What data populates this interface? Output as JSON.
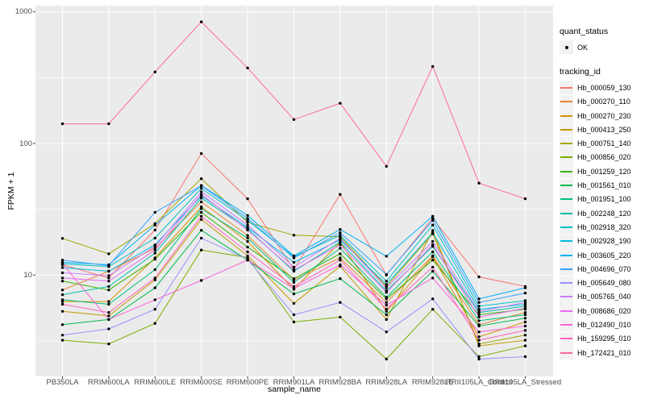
{
  "figure": {
    "background": "#FFFFFF",
    "panel_fill": "#EBEBEB",
    "grid_color": "#FFFFFF",
    "tick_color": "#333333",
    "tick_label_color": "#4D4D4D",
    "marker_color": "#000000"
  },
  "legend": {
    "quant_status_title": "quant_status",
    "quant_status_items": [
      "OK"
    ],
    "tracking_id_title": "tracking_id"
  },
  "chart_data": {
    "type": "line",
    "title": "",
    "xlabel": "sample_name",
    "ylabel": "FPKM + 1",
    "y_scale": "log10",
    "ylim": [
      1.7,
      1115
    ],
    "y_ticks": [
      10,
      100,
      1000
    ],
    "y_tick_labels": [
      "10",
      "100",
      "1000"
    ],
    "y_minor_gridlines": [
      3.162,
      31.623,
      316.228
    ],
    "grid": true,
    "legend_position": "right",
    "marker": "point",
    "categories": [
      "PB350LA",
      "RRIM600LA",
      "RRIM600LE",
      "RRIM600SE",
      "RRIM600PE",
      "RRIM901LA",
      "RRIM928BA",
      "RRIM928LA",
      "RRIM928LE",
      "RRII105LA_Control",
      "RRII105LA_Stressed"
    ],
    "series": [
      {
        "name": "Hb_000059_130",
        "color": "#F8766D",
        "values": [
          12,
          9.5,
          22,
          84,
          38,
          11,
          41,
          10,
          27,
          9.7,
          8.2
        ]
      },
      {
        "name": "Hb_000270_110",
        "color": "#EA8331",
        "values": [
          7.7,
          10.7,
          16,
          36,
          20,
          9.2,
          13.5,
          6.2,
          14,
          4.2,
          5.2
        ]
      },
      {
        "name": "Hb_000270_230",
        "color": "#D89000",
        "values": [
          6.3,
          6.3,
          13.5,
          33,
          18,
          7.8,
          17.8,
          5.3,
          13.8,
          3.4,
          4.4
        ]
      },
      {
        "name": "Hb_000413_250",
        "color": "#C09B00",
        "values": [
          5.3,
          4.9,
          9.2,
          26.5,
          14,
          6.1,
          11.7,
          4.6,
          21.8,
          2.9,
          3.2
        ]
      },
      {
        "name": "Hb_000751_140",
        "color": "#A3A500",
        "values": [
          19,
          14.5,
          24.6,
          54,
          25.2,
          20.1,
          19.6,
          8.2,
          20.6,
          3.0,
          3.5
        ]
      },
      {
        "name": "Hb_000856_020",
        "color": "#7CAE00",
        "values": [
          3.2,
          3.0,
          4.3,
          15.5,
          13.6,
          4.4,
          4.8,
          2.3,
          5.5,
          2.4,
          2.9
        ]
      },
      {
        "name": "Hb_001259_120",
        "color": "#39B600",
        "values": [
          9.0,
          7.7,
          13.2,
          30,
          16.3,
          9.4,
          14.5,
          6.6,
          13.0,
          5.0,
          5.5
        ]
      },
      {
        "name": "Hb_001561_010",
        "color": "#00BB4E",
        "values": [
          4.2,
          4.6,
          8.0,
          21.9,
          13.0,
          7.2,
          9.4,
          5.0,
          10.7,
          4.1,
          4.7
        ]
      },
      {
        "name": "Hb_001951_100",
        "color": "#00BF7D",
        "values": [
          6.5,
          6.0,
          11,
          32,
          19.1,
          8.8,
          16,
          6.8,
          15,
          4.5,
          5.0
        ]
      },
      {
        "name": "Hb_002248_120",
        "color": "#00C1A3",
        "values": [
          7.1,
          8.2,
          14.7,
          38.5,
          22.4,
          10.7,
          17.8,
          7.6,
          16.5,
          5.2,
          5.8
        ]
      },
      {
        "name": "Hb_002918_320",
        "color": "#00BFC4",
        "values": [
          12.2,
          11.6,
          19.1,
          45.6,
          26,
          13.8,
          20,
          9.0,
          24,
          5.8,
          6.4
        ]
      },
      {
        "name": "Hb_002928_190",
        "color": "#00BAE0",
        "values": [
          11.4,
          10.7,
          17,
          40,
          23,
          12.5,
          18.5,
          8.5,
          21,
          5.5,
          6.0
        ]
      },
      {
        "name": "Hb_003605_220",
        "color": "#00B0F6",
        "values": [
          12.5,
          12.0,
          24,
          48,
          28.4,
          14,
          22.2,
          13.9,
          28,
          6.6,
          8.0
        ]
      },
      {
        "name": "Hb_004696_070",
        "color": "#35A2FF",
        "values": [
          13,
          11.8,
          30,
          47.7,
          27,
          13.5,
          21,
          10.1,
          26,
          6.2,
          7.3
        ]
      },
      {
        "name": "Hb_005649_080",
        "color": "#9590FF",
        "values": [
          3.5,
          3.9,
          5.5,
          19.1,
          13.2,
          5.0,
          6.2,
          3.7,
          6.6,
          2.3,
          2.4
        ]
      },
      {
        "name": "Hb_005765_040",
        "color": "#C77CFF",
        "values": [
          10.4,
          9.9,
          16.5,
          43,
          24,
          11.5,
          19,
          8.0,
          18,
          5.3,
          6.2
        ]
      },
      {
        "name": "Hb_008686_020",
        "color": "#E76BF3",
        "values": [
          9.5,
          9.0,
          15.5,
          41,
          22,
          10.9,
          17,
          7.4,
          17,
          4.8,
          5.6
        ]
      },
      {
        "name": "Hb_012490_010",
        "color": "#FA62DB",
        "values": [
          12.2,
          4.6,
          6.5,
          9.1,
          13,
          7.9,
          12,
          5.9,
          9.5,
          3.7,
          4.1
        ]
      },
      {
        "name": "Hb_159295_010",
        "color": "#FF62BC",
        "values": [
          6.0,
          5.2,
          9.5,
          28,
          15,
          8.2,
          13,
          5.5,
          11.5,
          3.2,
          3.8
        ]
      },
      {
        "name": "Hb_172421_010",
        "color": "#FF6A98",
        "values": [
          141,
          141,
          350,
          840,
          375,
          152,
          202,
          67,
          385,
          50,
          38
        ]
      }
    ]
  }
}
